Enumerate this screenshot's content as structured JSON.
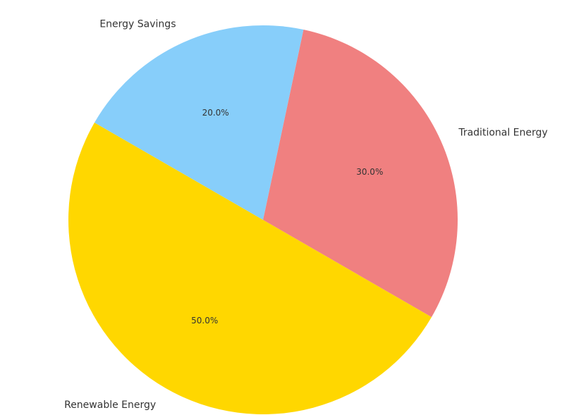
{
  "chart_data": {
    "type": "pie",
    "title": "",
    "slices": [
      {
        "label": "Renewable Energy",
        "value": 50.0,
        "pct_label": "50.0%",
        "color": "#FFD700"
      },
      {
        "label": "Traditional Energy",
        "value": 30.0,
        "pct_label": "30.0%",
        "color": "#F08080"
      },
      {
        "label": "Energy Savings",
        "value": 20.0,
        "pct_label": "20.0%",
        "color": "#87CEFA"
      }
    ],
    "start_angle_deg": 150,
    "direction": "counterclockwise",
    "legend": "none"
  }
}
